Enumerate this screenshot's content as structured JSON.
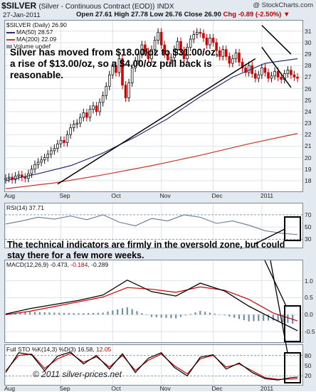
{
  "header": {
    "symbol": "$SILVER",
    "name": "(Silver - Continuous Contract (EOD))",
    "exchange": "INDX",
    "brand": "@ StockCharts.com",
    "date": "27-Jan-2011",
    "open_label": "Open 27.61",
    "high_label": "High 27.78",
    "low_label": "Low 26.76",
    "close_label": "Close 26.90",
    "chg_label": "Chg -0.89 (-2.50%)",
    "chg_marker": "▼"
  },
  "legend": {
    "price": "$SILVER (Daily) 26.90",
    "ma50": "MA(50) 28.57",
    "ma200": "MA(200) 22.09",
    "volume": "Volume undef"
  },
  "rsi_label": "RSI(14) 37.71",
  "macd_label": {
    "name": "MACD(12,26,9)",
    "v1": "-0.473",
    "v2": "-0.184",
    "v3": "-0.289"
  },
  "sto_label": {
    "name": "Full STO %K(14,3) %D(3)",
    "k": "16.58",
    "d": "12.05"
  },
  "annotations": {
    "price_note": "Silver has moved from $18.00/oz to $31.00/oz, a rise of $13.00/oz, so a $4.00/oz pull back is reasonable.",
    "indicator_note": "The technical indicators are firmly in the oversold zone, but could stay there for a few more weeks.",
    "copyright": "© 2011 silver-prices.net"
  },
  "colors": {
    "background": "#e2e9f1",
    "panel": "#ffffff",
    "grid": "#dde3ea",
    "candle_up": "#111111",
    "candle_down": "#d40000",
    "ma50": "#2b2b7a",
    "ma200": "#c0392b",
    "rsi": "#6a7a8a",
    "macd_line": "#000000",
    "signal_line": "#cc0000",
    "histogram": "#6f8fa8",
    "sto_k": "#000000",
    "sto_d": "#cc0000",
    "annotation": "#000000"
  },
  "chart_data": [
    {
      "type": "candlestick",
      "title": "$SILVER (Daily)",
      "x_tick_labels": [
        "Aug",
        "Sep",
        "Oct",
        "Nov",
        "Dec",
        "2011"
      ],
      "y_tick_labels": [
        "18",
        "19",
        "20",
        "21",
        "22",
        "23",
        "24",
        "25",
        "26",
        "27",
        "28",
        "29",
        "30",
        "31"
      ],
      "ylim": [
        17.5,
        31.6
      ],
      "grid": true,
      "x": [
        0,
        2,
        4,
        6,
        8,
        10,
        12,
        14,
        16,
        18,
        20,
        22,
        24,
        26,
        28,
        30,
        32,
        34,
        36,
        38,
        40,
        42,
        44,
        46,
        48,
        50,
        52,
        54,
        56,
        58,
        60,
        62,
        64,
        66,
        68,
        70,
        72,
        74,
        76,
        78,
        80,
        82,
        84,
        86,
        88,
        90,
        92,
        94,
        96,
        98,
        100,
        102,
        104,
        106,
        108,
        110,
        112,
        114,
        116,
        118,
        120,
        122,
        124,
        126,
        128,
        130,
        132,
        134,
        136,
        138,
        140,
        142,
        144,
        146,
        148,
        150,
        152,
        154,
        156,
        158,
        160,
        162,
        164,
        166,
        168,
        170,
        172,
        174,
        176,
        178,
        180
      ],
      "close": [
        18.2,
        18.3,
        18.1,
        18.4,
        18.5,
        18.3,
        18.2,
        18.6,
        19.0,
        19.4,
        19.6,
        19.8,
        20.0,
        20.3,
        20.6,
        20.8,
        21.2,
        21.5,
        21.3,
        22.0,
        22.6,
        22.9,
        23.0,
        23.5,
        23.9,
        23.5,
        24.2,
        24.5,
        24.0,
        24.8,
        25.4,
        26.2,
        27.2,
        28.0,
        27.4,
        28.6,
        26.3,
        25.2,
        26.5,
        27.8,
        28.4,
        29.0,
        29.8,
        29.2,
        28.6,
        29.4,
        30.2,
        30.9,
        29.8,
        29.0,
        28.5,
        28.7,
        29.4,
        30.1,
        29.3,
        28.6,
        29.6,
        30.3,
        30.7,
        30.9,
        30.8,
        30.4,
        29.8,
        30.4,
        30.0,
        29.3,
        28.8,
        29.4,
        28.8,
        28.2,
        28.6,
        29.1,
        28.3,
        27.8,
        27.4,
        28.0,
        27.3,
        26.9,
        27.2,
        27.8,
        27.4,
        26.9,
        27.1,
        27.5,
        27.0,
        26.8,
        27.3,
        27.6,
        27.2,
        27.0,
        26.9
      ]
    },
    {
      "type": "line",
      "title": "MA(50)",
      "x": [
        0,
        20,
        40,
        60,
        80,
        100,
        120,
        140,
        160,
        180
      ],
      "y": [
        18.0,
        18.6,
        19.3,
        20.4,
        21.8,
        23.4,
        25.3,
        27.0,
        28.2,
        28.6
      ]
    },
    {
      "type": "line",
      "title": "MA(200)",
      "x": [
        0,
        30,
        60,
        90,
        120,
        150,
        180
      ],
      "y": [
        17.3,
        17.8,
        18.5,
        19.3,
        20.2,
        21.2,
        22.1
      ]
    },
    {
      "type": "line",
      "title": "RSI(14)",
      "y_tick_labels": [
        "70",
        "50",
        "30"
      ],
      "ylim": [
        20,
        85
      ],
      "x": [
        0,
        10,
        20,
        30,
        40,
        50,
        60,
        70,
        80,
        90,
        100,
        110,
        120,
        130,
        140,
        150,
        160,
        170,
        180
      ],
      "y": [
        55,
        60,
        66,
        63,
        68,
        62,
        70,
        58,
        52,
        64,
        60,
        70,
        66,
        56,
        60,
        53,
        44,
        40,
        37.71
      ]
    },
    {
      "type": "line",
      "title": "MACD(12,26,9)",
      "y_tick_labels": [
        "1.0",
        "0.5",
        "0.0",
        "-0.5"
      ],
      "ylim": [
        -0.75,
        1.35
      ],
      "x": [
        0,
        15,
        30,
        45,
        60,
        75,
        90,
        105,
        120,
        135,
        150,
        165,
        180
      ],
      "series": [
        {
          "name": "MACD",
          "values": [
            0.02,
            0.18,
            0.3,
            0.42,
            0.58,
            1.02,
            0.68,
            0.55,
            0.93,
            0.7,
            0.25,
            -0.12,
            -0.473
          ]
        },
        {
          "name": "Signal",
          "values": [
            0.0,
            0.1,
            0.24,
            0.38,
            0.52,
            0.8,
            0.75,
            0.66,
            0.82,
            0.72,
            0.45,
            0.05,
            -0.184
          ]
        }
      ]
    },
    {
      "type": "line",
      "title": "Full STO %K(14,3) %D(3)",
      "y_tick_labels": [
        "80",
        "50",
        "20"
      ],
      "ylim": [
        0,
        100
      ],
      "x": [
        0,
        8,
        16,
        24,
        32,
        40,
        48,
        56,
        64,
        72,
        80,
        88,
        96,
        104,
        112,
        120,
        128,
        136,
        144,
        152,
        160,
        168,
        176,
        180
      ],
      "series": [
        {
          "name": "%K",
          "values": [
            30,
            88,
            82,
            35,
            78,
            90,
            55,
            80,
            40,
            85,
            30,
            72,
            88,
            45,
            20,
            75,
            82,
            40,
            58,
            30,
            12,
            8,
            15,
            16.58
          ]
        },
        {
          "name": "%D",
          "values": [
            35,
            80,
            84,
            42,
            70,
            86,
            60,
            76,
            46,
            80,
            36,
            66,
            84,
            50,
            26,
            70,
            80,
            46,
            55,
            35,
            15,
            10,
            11,
            12.05
          ]
        }
      ]
    }
  ]
}
